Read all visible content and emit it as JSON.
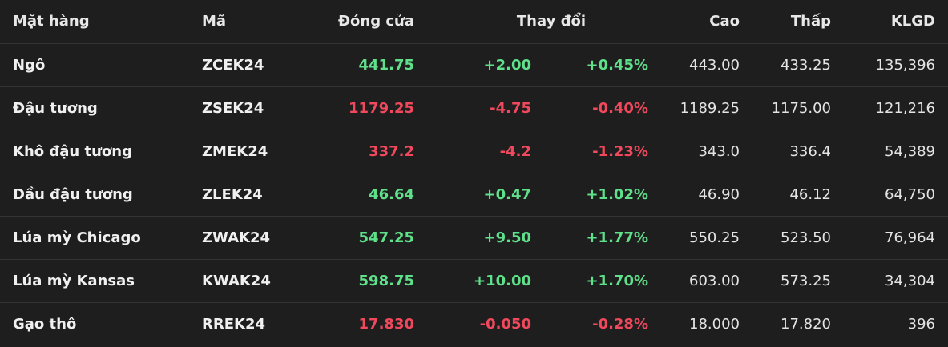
{
  "headers": {
    "name": "Mặt hàng",
    "code": "Mã",
    "close": "Đóng cửa",
    "change": "Thay đổi",
    "high": "Cao",
    "low": "Thấp",
    "volume": "KLGD"
  },
  "colors": {
    "background": "#1e1e1f",
    "up": "#5fe08a",
    "down": "#f0485c",
    "divider": "#343436"
  },
  "rows": [
    {
      "name": "Ngô",
      "code": "ZCEK24",
      "close": "441.75",
      "change": "+2.00",
      "pct": "+0.45%",
      "high": "443.00",
      "low": "433.25",
      "volume": "135,396",
      "direction": "up"
    },
    {
      "name": "Đậu tương",
      "code": "ZSEK24",
      "close": "1179.25",
      "change": "-4.75",
      "pct": "-0.40%",
      "high": "1189.25",
      "low": "1175.00",
      "volume": "121,216",
      "direction": "down"
    },
    {
      "name": "Khô đậu tương",
      "code": "ZMEK24",
      "close": "337.2",
      "change": "-4.2",
      "pct": "-1.23%",
      "high": "343.0",
      "low": "336.4",
      "volume": "54,389",
      "direction": "down"
    },
    {
      "name": "Dầu đậu tương",
      "code": "ZLEK24",
      "close": "46.64",
      "change": "+0.47",
      "pct": "+1.02%",
      "high": "46.90",
      "low": "46.12",
      "volume": "64,750",
      "direction": "up"
    },
    {
      "name": "Lúa mỳ Chicago",
      "code": "ZWAK24",
      "close": "547.25",
      "change": "+9.50",
      "pct": "+1.77%",
      "high": "550.25",
      "low": "523.50",
      "volume": "76,964",
      "direction": "up"
    },
    {
      "name": "Lúa mỳ Kansas",
      "code": "KWAK24",
      "close": "598.75",
      "change": "+10.00",
      "pct": "+1.70%",
      "high": "603.00",
      "low": "573.25",
      "volume": "34,304",
      "direction": "up"
    },
    {
      "name": "Gạo thô",
      "code": "RREK24",
      "close": "17.830",
      "change": "-0.050",
      "pct": "-0.28%",
      "high": "18.000",
      "low": "17.820",
      "volume": "396",
      "direction": "down"
    }
  ]
}
